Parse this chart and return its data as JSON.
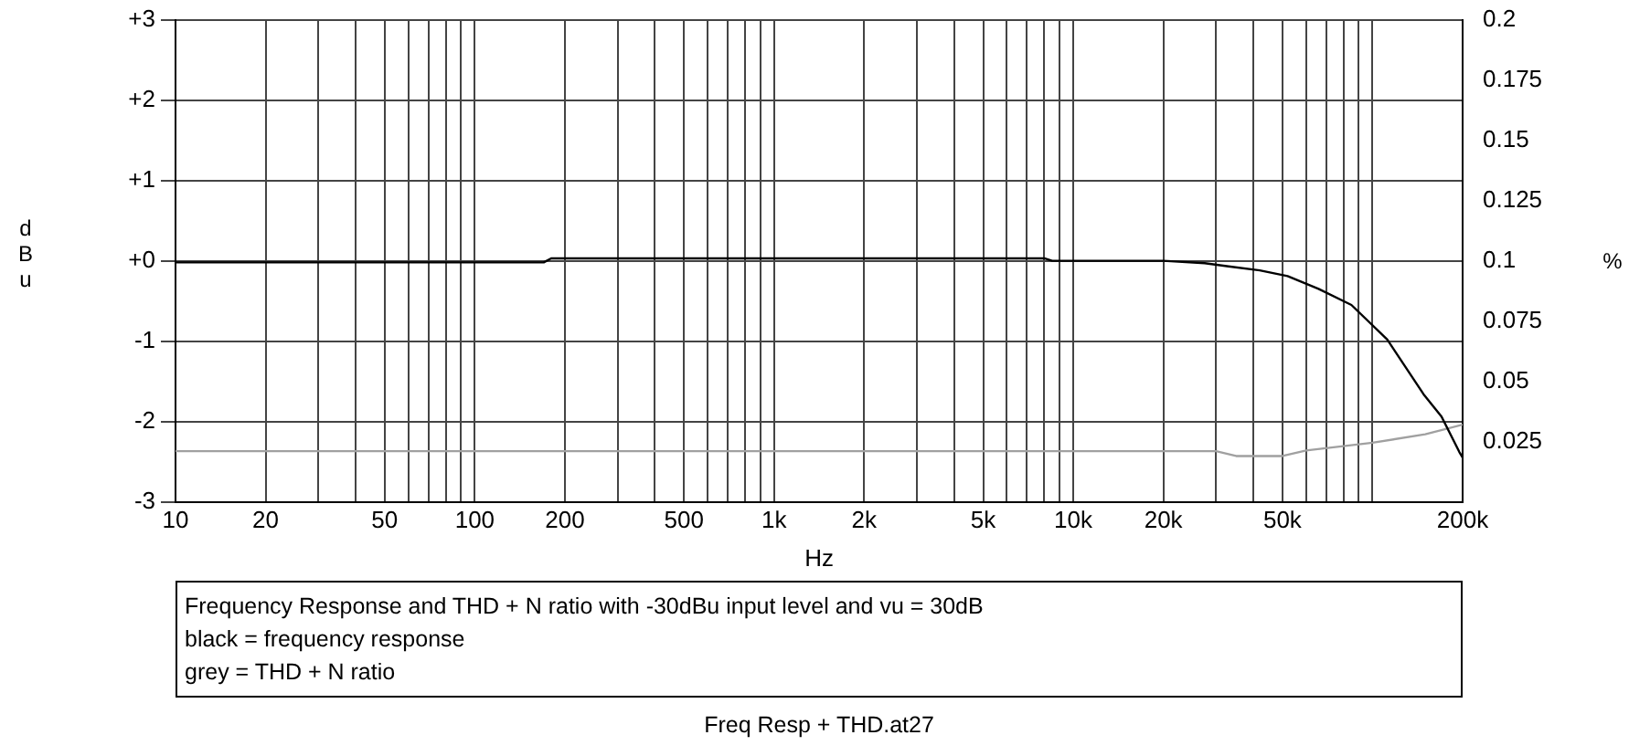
{
  "chart_data": {
    "type": "line",
    "xlabel": "Hz",
    "ylabel": "dBu",
    "y2label": "%",
    "log": "x",
    "grid": true,
    "marker": "none",
    "line_style": "solid",
    "xlim": [
      10,
      200000
    ],
    "xticks": [
      10,
      20,
      {
        "value": 30,
        "label": null
      },
      {
        "value": 40,
        "label": null
      },
      50,
      {
        "value": 60,
        "label": null
      },
      {
        "value": 70,
        "label": null
      },
      {
        "value": 80,
        "label": null
      },
      {
        "value": 90,
        "label": null
      },
      100,
      200,
      {
        "value": 300,
        "label": null
      },
      {
        "value": 400,
        "label": null
      },
      500,
      {
        "value": 600,
        "label": null
      },
      {
        "value": 700,
        "label": null
      },
      {
        "value": 800,
        "label": null
      },
      {
        "value": 900,
        "label": null
      },
      {
        "value": 1000,
        "label": "1k"
      },
      {
        "value": 2000,
        "label": "2k"
      },
      {
        "value": 3000,
        "label": null
      },
      {
        "value": 4000,
        "label": null
      },
      {
        "value": 5000,
        "label": "5k"
      },
      {
        "value": 6000,
        "label": null
      },
      {
        "value": 7000,
        "label": null
      },
      {
        "value": 8000,
        "label": null
      },
      {
        "value": 9000,
        "label": null
      },
      {
        "value": 10000,
        "label": "10k"
      },
      {
        "value": 20000,
        "label": "20k"
      },
      {
        "value": 30000,
        "label": null
      },
      {
        "value": 40000,
        "label": null
      },
      {
        "value": 50000,
        "label": "50k"
      },
      {
        "value": 60000,
        "label": null
      },
      {
        "value": 70000,
        "label": null
      },
      {
        "value": 80000,
        "label": null
      },
      {
        "value": 90000,
        "label": null
      },
      {
        "value": 100000,
        "label": null
      },
      {
        "value": 200000,
        "label": "200k"
      }
    ],
    "ylim": [
      -3,
      3
    ],
    "yticks": [
      {
        "value": -3,
        "label": "-3"
      },
      {
        "value": -2,
        "label": "-2"
      },
      {
        "value": -1,
        "label": "-1"
      },
      {
        "value": 0,
        "label": "+0"
      },
      {
        "value": 1,
        "label": "+1"
      },
      {
        "value": 2,
        "label": "+2"
      },
      {
        "value": 3,
        "label": "+3"
      }
    ],
    "y2lim": [
      0,
      0.2
    ],
    "y2ticks": [
      0.025,
      0.05,
      0.075,
      0.1,
      0.125,
      0.15,
      0.175,
      0.2
    ],
    "series": [
      {
        "color": "#000000",
        "axis": "y",
        "x": [
          10,
          14,
          100,
          170,
          180,
          1000,
          8000,
          8500,
          20000,
          27500,
          33000,
          42000,
          52000,
          66000,
          85000,
          112000,
          148000,
          170000,
          195000,
          200000
        ],
        "values": [
          -0.02,
          -0.02,
          -0.02,
          -0.02,
          0.03,
          0.03,
          0.03,
          0,
          0,
          -0.03,
          -0.07,
          -0.12,
          -0.19,
          -0.35,
          -0.55,
          -0.98,
          -1.66,
          -1.94,
          -2.38,
          -2.45
        ]
      },
      {
        "color": "#a0a0a0",
        "axis": "y2",
        "x": [
          10,
          100,
          1000,
          5000,
          7000,
          20000,
          30000,
          35000,
          50000,
          60000,
          100000,
          150000,
          200000
        ],
        "values": [
          0.021,
          0.021,
          0.021,
          0.021,
          0.021,
          0.021,
          0.021,
          0.019,
          0.019,
          0.0213,
          0.0245,
          0.028,
          0.032
        ]
      }
    ],
    "annotations": [
      "Frequency Response and THD + N ratio with -30dBu input level and vu = 30dB",
      "black = frequency response",
      "grey = THD + N ratio",
      "Freq Resp + THD.at27"
    ]
  }
}
